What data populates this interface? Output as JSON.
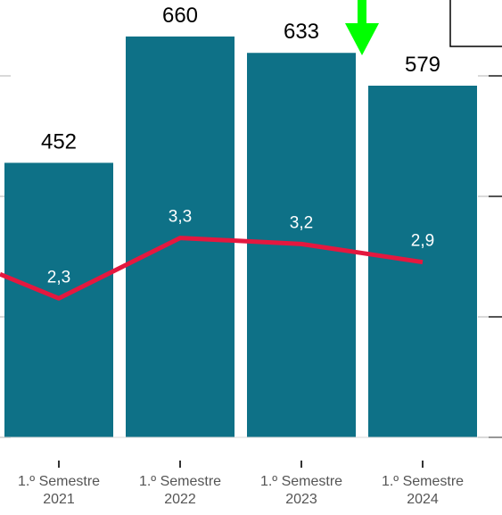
{
  "chart_data": {
    "type": "bar",
    "categories": [
      [
        "1.º Semestre",
        "2021"
      ],
      [
        "1.º Semestre",
        "2022"
      ],
      [
        "1.º Semestre",
        "2023"
      ],
      [
        "1.º Semestre",
        "2024"
      ]
    ],
    "series": [
      {
        "type": "bar",
        "values": [
          452,
          660,
          633,
          579
        ],
        "labels": [
          "452",
          "660",
          "633",
          "579"
        ],
        "color": "#0e7187"
      },
      {
        "type": "line",
        "values": [
          2.3,
          3.3,
          3.2,
          2.9
        ],
        "labels": [
          "2,3",
          "3,3",
          "3,2",
          "2,9"
        ],
        "color": "#e4183f",
        "leading_value": 2.7
      }
    ],
    "grid": true,
    "annotations": [
      {
        "type": "arrow",
        "direction": "down",
        "color": "#00ff00",
        "target_category": "1.º Semestre 2023"
      }
    ]
  }
}
